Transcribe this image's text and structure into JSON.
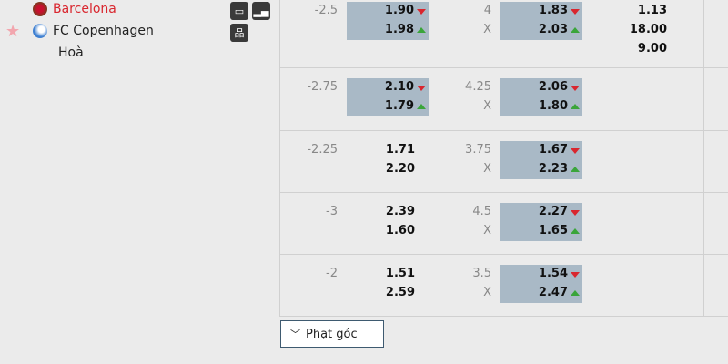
{
  "match": {
    "home": "Barcelona",
    "away": "FC Copenhagen",
    "draw": "Hoà",
    "home_color": "#d9262e"
  },
  "icons": [
    "monitor-icon",
    "stats-icon",
    "lineup-icon",
    "star-icon"
  ],
  "rows": [
    {
      "handicap": "-2.5",
      "hc_home": "1.90",
      "hc_away": "1.98",
      "hc_hl": true,
      "ou": "4",
      "ou_x": "X",
      "ou_over": "1.83",
      "ou_under": "2.03",
      "ou_hl": true,
      "x12": [
        "1.13",
        "18.00",
        "9.00"
      ]
    },
    {
      "handicap": "-2.75",
      "hc_home": "2.10",
      "hc_away": "1.79",
      "hc_hl": true,
      "ou": "4.25",
      "ou_x": "X",
      "ou_over": "2.06",
      "ou_under": "1.80",
      "ou_hl": true
    },
    {
      "handicap": "-2.25",
      "hc_home": "1.71",
      "hc_away": "2.20",
      "hc_hl": false,
      "ou": "3.75",
      "ou_x": "X",
      "ou_over": "1.67",
      "ou_under": "2.23",
      "ou_hl": true
    },
    {
      "handicap": "-3",
      "hc_home": "2.39",
      "hc_away": "1.60",
      "hc_hl": false,
      "ou": "4.5",
      "ou_x": "X",
      "ou_over": "2.27",
      "ou_under": "1.65",
      "ou_hl": true
    },
    {
      "handicap": "-2",
      "hc_home": "1.51",
      "hc_away": "2.59",
      "hc_hl": false,
      "ou": "3.5",
      "ou_x": "X",
      "ou_over": "1.54",
      "ou_under": "2.47",
      "ou_hl": true
    }
  ],
  "corner_button": "Phạt góc"
}
